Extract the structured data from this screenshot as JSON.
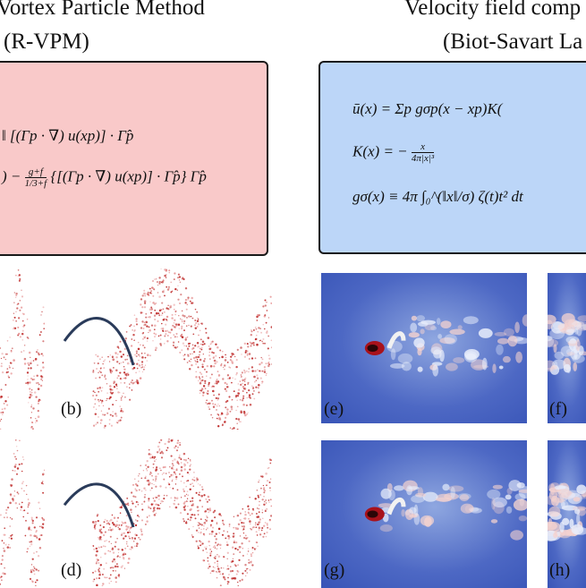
{
  "left_title_line1": "Vortex Particle Method",
  "left_title_line2": "(R-VPM)",
  "right_title_line1": "Velocity field comp",
  "right_title_line2": "(Biot-Savart La",
  "left_equations": {
    "eq1": "[(Γp · ∇) u(xp)] · Γ̂p",
    "eq2_pre": ") −",
    "eq2_frac_num": "g+f",
    "eq2_frac_den": "1/3+f",
    "eq2_post": "{[(Γp · ∇) u(xp)] · Γ̂p} Γ̂p"
  },
  "right_equations": {
    "eq1": "ū(x) = Σp gσp(x − xp)K(",
    "eq2": "K(x) = −",
    "eq2_frac_num": "x",
    "eq2_frac_den": "4π|x|³",
    "eq3": "gσ(x) ≡ 4π ∫₀^(‖x‖/σ) ζ(t)t² dt"
  },
  "panel_labels": {
    "b": "(b)",
    "d": "(d)",
    "e": "(e)",
    "f": "(f)",
    "g": "(g)",
    "h": "(h)"
  },
  "colors": {
    "red_box": "#f9c9c9",
    "blue_box": "#bcd6f8",
    "particles": "#c0302f",
    "field_bg": "#3a56b8"
  }
}
